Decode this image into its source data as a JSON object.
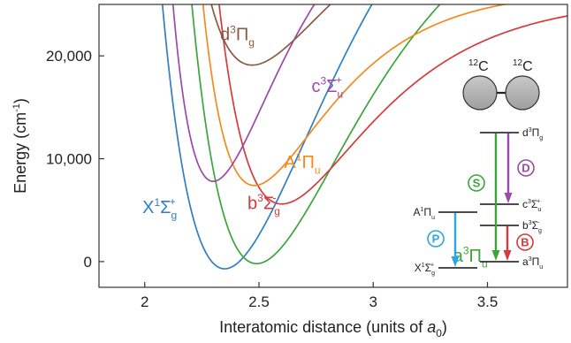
{
  "chart_data": {
    "type": "line",
    "title": "",
    "xlabel": "Interatomic distance (units of a₀)",
    "xlabel_parts": {
      "text": "Interatomic distance (units of ",
      "sym": "a",
      "sub": "0",
      "close": ")"
    },
    "ylabel": "Energy (cm⁻¹)",
    "ylabel_parts": {
      "text": "Energy (cm",
      "sup": "-1",
      "close": ")"
    },
    "xlim": [
      1.8,
      3.85
    ],
    "ylim": [
      -2500,
      25000
    ],
    "x_ticks": [
      {
        "value": 2,
        "label": "2"
      },
      {
        "value": 2.5,
        "label": "2.5"
      },
      {
        "value": 3,
        "label": "3"
      },
      {
        "value": 3.5,
        "label": "3.5"
      }
    ],
    "y_ticks": [
      {
        "value": 0,
        "label": "0"
      },
      {
        "value": 10000,
        "label": "10,000"
      },
      {
        "value": 20000,
        "label": "20,000"
      }
    ],
    "grid": false,
    "series": [
      {
        "id": "X",
        "main": "X",
        "pre": "1",
        "sym": "Σ",
        "sub": "g",
        "sup": "+",
        "color": "#2f7fc1",
        "re": 2.35,
        "Te": -700,
        "De": 49000,
        "a": 2.0,
        "label_x": 1.99,
        "label_y": 4700
      },
      {
        "id": "a",
        "main": "a",
        "pre": "3",
        "sym": "Π",
        "sub": "u",
        "sup": "",
        "color": "#3aa63a",
        "re": 2.49,
        "Te": -200,
        "De": 38000,
        "a": 2.1,
        "label_x": 3.35,
        "label_y": 0
      },
      {
        "id": "b",
        "main": "b",
        "pre": "3",
        "sym": "Σ",
        "sub": "g",
        "sup": "-",
        "color": "#d63a3a",
        "re": 2.6,
        "Te": 5600,
        "De": 20000,
        "a": 2.5,
        "label_x": 2.45,
        "label_y": 5100
      },
      {
        "id": "A",
        "main": "A",
        "pre": "1",
        "sym": "Π",
        "sub": "u",
        "sup": "",
        "color": "#f28a1e",
        "re": 2.48,
        "Te": 7400,
        "De": 19000,
        "a": 3.0,
        "label_x": 2.61,
        "label_y": 9100
      },
      {
        "id": "c",
        "main": "c",
        "pre": "3",
        "sym": "Σ",
        "sub": "u",
        "sup": "+",
        "color": "#9a4aa8",
        "re": 2.3,
        "Te": 7800,
        "De": 30000,
        "a": 3.2,
        "label_x": 2.73,
        "label_y": 16500
      },
      {
        "id": "d",
        "main": "d",
        "pre": "3",
        "sym": "Π",
        "sub": "g",
        "sup": "",
        "color": "#8b5a45",
        "re": 2.47,
        "Te": 19100,
        "De": 17000,
        "a": 2.6,
        "label_x": 2.33,
        "label_y": 21500
      }
    ],
    "inset": {
      "molecule": {
        "left": {
          "mass": "12",
          "element": "C"
        },
        "right": {
          "mass": "12",
          "element": "C"
        }
      },
      "levels": [
        {
          "id": "d",
          "main": "d",
          "pre": "3",
          "sym": "Π",
          "sub": "g",
          "sup": "",
          "side": "right"
        },
        {
          "id": "c",
          "main": "c",
          "pre": "3",
          "sym": "Σ",
          "sub": "u",
          "sup": "+",
          "side": "right"
        },
        {
          "id": "b",
          "main": "b",
          "pre": "3",
          "sym": "Σ",
          "sub": "g",
          "sup": "-",
          "side": "right"
        },
        {
          "id": "a",
          "main": "a",
          "pre": "3",
          "sym": "Π",
          "sub": "u",
          "sup": "",
          "side": "right"
        },
        {
          "id": "A",
          "main": "A",
          "pre": "1",
          "sym": "Π",
          "sub": "u",
          "sup": "",
          "side": "left"
        },
        {
          "id": "X",
          "main": "X",
          "pre": "1",
          "sym": "Σ",
          "sub": "g",
          "sup": "+",
          "side": "left"
        }
      ],
      "transitions": [
        {
          "label": "S",
          "from": "d",
          "to": "a",
          "color": "#3aa63a",
          "label_side": "left"
        },
        {
          "label": "D",
          "from": "d",
          "to": "c",
          "color": "#9a4aa8",
          "label_side": "right"
        },
        {
          "label": "B",
          "from": "b",
          "to": "a",
          "color": "#d63a3a",
          "label_side": "right"
        },
        {
          "label": "P",
          "from": "A",
          "to": "X",
          "color": "#2aa7e0",
          "label_side": "left"
        }
      ]
    }
  }
}
